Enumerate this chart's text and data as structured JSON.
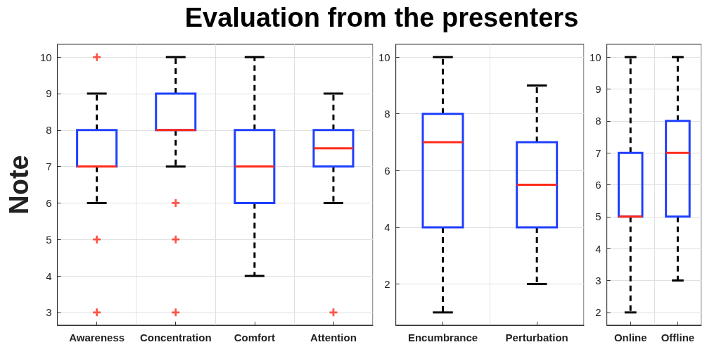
{
  "chart_data": [
    {
      "type": "box",
      "title": "Evaluation from the presenters",
      "ylabel": "Note",
      "categories": [
        "Awareness",
        "Concentration",
        "Comfort",
        "Attention"
      ],
      "ylim": [
        2.65,
        10.35
      ],
      "yticks": [
        3,
        4,
        5,
        6,
        7,
        8,
        9,
        10
      ],
      "grid": true,
      "series": [
        {
          "color": "#1f3fff",
          "boxes": [
            {
              "low": 6,
              "q1": 7,
              "median": 7,
              "q3": 8,
              "high": 9,
              "outliers": [
                10,
                5,
                3
              ]
            },
            {
              "low": 7,
              "q1": 8,
              "median": 8,
              "q3": 9,
              "high": 10,
              "outliers": [
                6,
                5,
                3
              ]
            },
            {
              "low": 4,
              "q1": 6,
              "median": 7,
              "q3": 8,
              "high": 10
            },
            {
              "low": 6,
              "q1": 7,
              "median": 7.5,
              "q3": 8,
              "high": 9,
              "outliers": [
                3
              ]
            }
          ]
        }
      ]
    },
    {
      "type": "box",
      "categories": [
        "Encumbrance",
        "Perturbation"
      ],
      "ylim": [
        0.55,
        10.45
      ],
      "yticks": [
        2,
        4,
        6,
        8,
        10
      ],
      "grid": true,
      "series": [
        {
          "color": "#1f3fff",
          "boxes": [
            {
              "low": 1,
              "q1": 4,
              "median": 7,
              "q3": 8,
              "high": 10
            },
            {
              "low": 2,
              "q1": 4,
              "median": 5.5,
              "q3": 7,
              "high": 9
            }
          ]
        }
      ]
    },
    {
      "type": "box",
      "categories": [
        "Online",
        "Offline"
      ],
      "ylim": [
        1.6,
        10.4
      ],
      "yticks": [
        2,
        3,
        4,
        5,
        6,
        7,
        8,
        9,
        10
      ],
      "grid": true,
      "series": [
        {
          "color": "#1f3fff",
          "boxes": [
            {
              "low": 2,
              "q1": 5,
              "median": 5,
              "q3": 7,
              "high": 10
            },
            {
              "low": 3,
              "q1": 5,
              "median": 7,
              "q3": 8,
              "high": 10
            }
          ]
        }
      ]
    }
  ]
}
